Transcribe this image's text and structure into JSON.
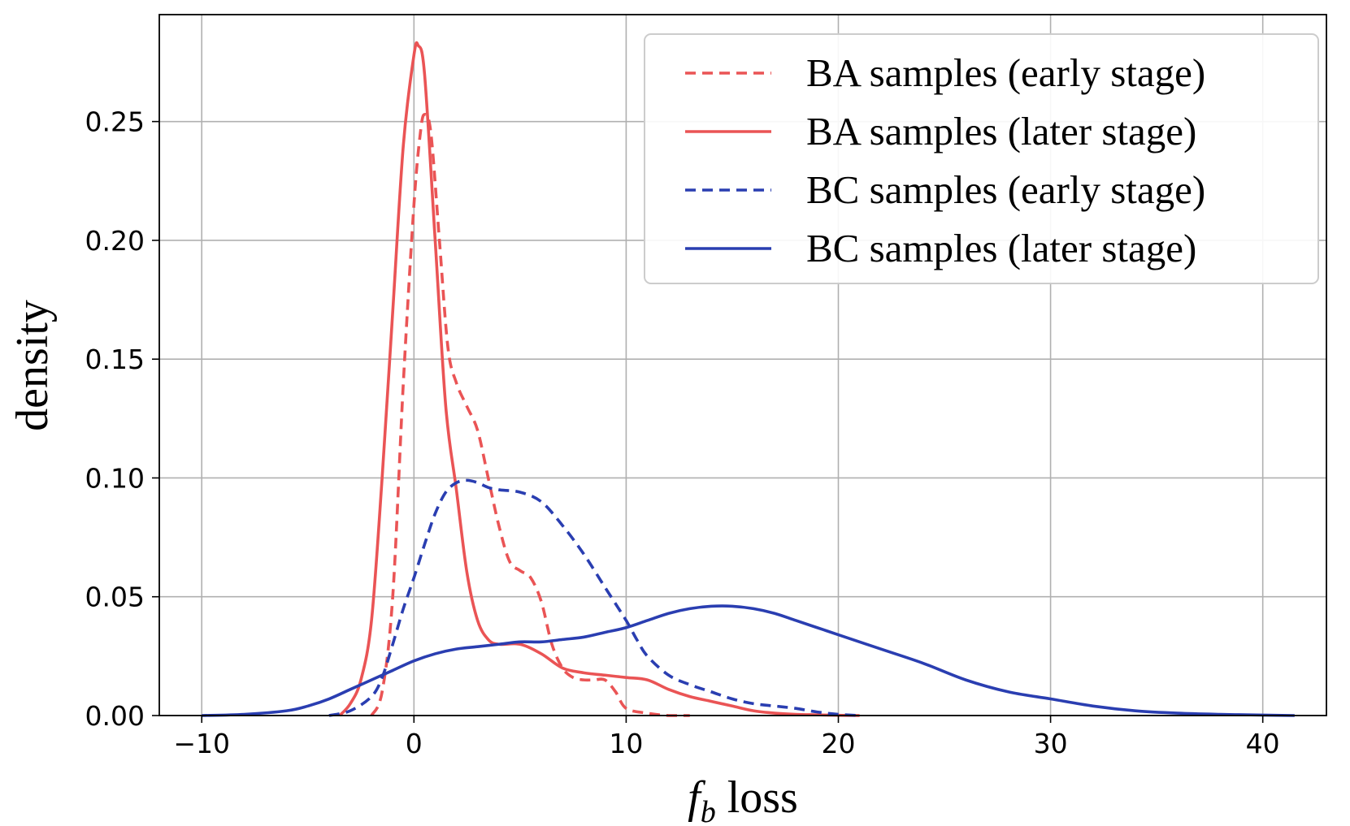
{
  "chart_data": {
    "type": "line",
    "xlabel_symbol": "f",
    "xlabel_subscript": "b",
    "xlabel_rest": " loss",
    "ylabel": "density",
    "xlim": [
      -12,
      43
    ],
    "ylim": [
      0,
      0.295
    ],
    "xticks": [
      -10,
      0,
      10,
      20,
      30,
      40
    ],
    "xtick_labels": [
      "−10",
      "0",
      "10",
      "20",
      "30",
      "40"
    ],
    "yticks": [
      0.0,
      0.05,
      0.1,
      0.15,
      0.2,
      0.25
    ],
    "ytick_labels": [
      "0.00",
      "0.05",
      "0.10",
      "0.15",
      "0.20",
      "0.25"
    ],
    "grid": true,
    "legend_position": "top-right",
    "series": [
      {
        "name": "BA samples (early stage)",
        "color": "#ea5455",
        "dash": "dashed",
        "x": [
          -2.0,
          -1.5,
          -1.0,
          -0.5,
          0.0,
          0.3,
          0.5,
          0.8,
          1.2,
          1.6,
          2.0,
          2.5,
          3.0,
          3.5,
          4.0,
          4.5,
          5.0,
          5.5,
          6.0,
          6.5,
          7.0,
          7.5,
          8.0,
          8.5,
          9.0,
          9.5,
          10.0,
          11.0,
          12.0,
          13.0
        ],
        "y": [
          0.0,
          0.01,
          0.05,
          0.14,
          0.215,
          0.245,
          0.253,
          0.245,
          0.2,
          0.155,
          0.14,
          0.13,
          0.12,
          0.1,
          0.08,
          0.065,
          0.061,
          0.058,
          0.048,
          0.03,
          0.02,
          0.016,
          0.015,
          0.015,
          0.015,
          0.01,
          0.003,
          0.001,
          0.0,
          0.0
        ]
      },
      {
        "name": "BA samples (later stage)",
        "color": "#ea5455",
        "dash": "solid",
        "x": [
          -3.5,
          -3.0,
          -2.5,
          -2.0,
          -1.5,
          -1.0,
          -0.5,
          0.0,
          0.2,
          0.5,
          1.0,
          1.5,
          2.0,
          2.5,
          3.0,
          3.5,
          4.0,
          5.0,
          6.0,
          7.0,
          8.0,
          9.0,
          10.0,
          11.0,
          12.0,
          13.0,
          14.0,
          15.0,
          16.0,
          17.0,
          18.0,
          19.0,
          20.0,
          21.0
        ],
        "y": [
          0.0,
          0.005,
          0.015,
          0.04,
          0.1,
          0.17,
          0.24,
          0.278,
          0.282,
          0.27,
          0.2,
          0.13,
          0.095,
          0.06,
          0.04,
          0.032,
          0.03,
          0.03,
          0.026,
          0.02,
          0.018,
          0.017,
          0.016,
          0.015,
          0.011,
          0.008,
          0.006,
          0.004,
          0.002,
          0.001,
          0.0005,
          0.0003,
          0.0001,
          0.0
        ]
      },
      {
        "name": "BC samples (early stage)",
        "color": "#2a3eb1",
        "dash": "dashed",
        "x": [
          -4.0,
          -3.0,
          -2.0,
          -1.5,
          -1.0,
          -0.5,
          0.0,
          0.5,
          1.0,
          1.5,
          2.0,
          2.5,
          3.0,
          3.5,
          4.0,
          5.0,
          6.0,
          7.0,
          8.0,
          9.0,
          10.0,
          10.5,
          11.0,
          12.0,
          13.0,
          14.0,
          15.0,
          16.0,
          17.0,
          18.0,
          19.0,
          20.0,
          21.0
        ],
        "y": [
          0.0,
          0.002,
          0.008,
          0.016,
          0.03,
          0.045,
          0.058,
          0.072,
          0.085,
          0.094,
          0.098,
          0.099,
          0.098,
          0.096,
          0.095,
          0.094,
          0.09,
          0.08,
          0.068,
          0.054,
          0.04,
          0.032,
          0.025,
          0.017,
          0.013,
          0.01,
          0.007,
          0.005,
          0.004,
          0.003,
          0.0015,
          0.0005,
          0.0
        ]
      },
      {
        "name": "BC samples (later stage)",
        "color": "#2a3eb1",
        "dash": "solid",
        "x": [
          -10.0,
          -8.0,
          -6.0,
          -5.0,
          -4.0,
          -3.0,
          -2.0,
          -1.0,
          0.0,
          1.0,
          2.0,
          3.0,
          4.0,
          5.0,
          6.0,
          7.0,
          8.0,
          9.0,
          10.0,
          11.0,
          12.0,
          13.0,
          14.0,
          15.0,
          16.0,
          17.0,
          18.0,
          19.0,
          20.0,
          22.0,
          24.0,
          26.0,
          28.0,
          30.0,
          32.0,
          34.0,
          36.0,
          38.0,
          40.0,
          41.5
        ],
        "y": [
          0.0,
          0.0005,
          0.002,
          0.004,
          0.007,
          0.011,
          0.015,
          0.019,
          0.023,
          0.026,
          0.028,
          0.029,
          0.03,
          0.031,
          0.031,
          0.032,
          0.033,
          0.035,
          0.037,
          0.04,
          0.043,
          0.045,
          0.046,
          0.046,
          0.045,
          0.043,
          0.04,
          0.037,
          0.034,
          0.028,
          0.022,
          0.015,
          0.01,
          0.007,
          0.004,
          0.002,
          0.001,
          0.0005,
          0.0002,
          0.0
        ]
      }
    ]
  }
}
